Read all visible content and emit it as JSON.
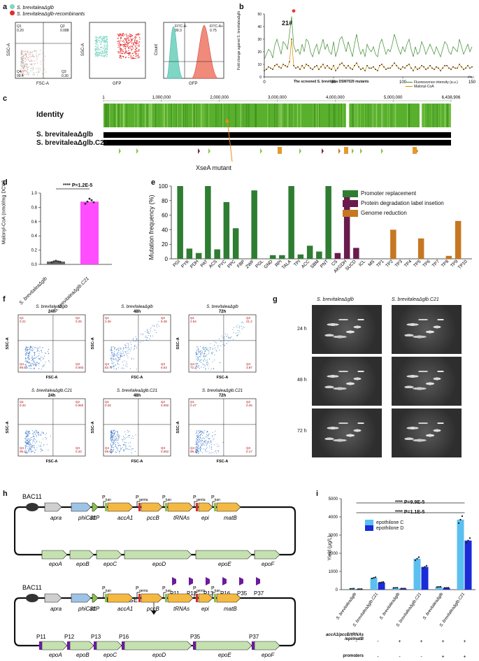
{
  "panels": {
    "a": "a",
    "b": "b",
    "c": "c",
    "d": "d",
    "e": "e",
    "f": "f",
    "g": "g",
    "h": "h",
    "i": "i"
  },
  "a": {
    "legend": [
      "S. brevitaleaΔglb",
      "S. brevitaleaΔglb-recombinants"
    ],
    "legend_colors": [
      "#7fd6c4",
      "#e52b2b"
    ],
    "plot1": {
      "xlabel": "FSC-A",
      "ylabel": "SSC-A",
      "q1": "Q1\n0.20",
      "q2": "Q2\n0.088",
      "q3": "Q3\n0.30",
      "q4": "Q4\n99.4"
    },
    "plot2": {
      "xlabel": "GFP",
      "ylabel": "SSC-A"
    },
    "plot3": {
      "xlabel": "GFP",
      "ylabel": "Count",
      "l1": "FITC-A-\n99.3",
      "l2": "FITC-A+\n0.75"
    }
  },
  "b": {
    "ylabel": "Fold change against S. brevitaleaΔglb",
    "xlabel": "The screened S. brevitalea DSM7029 mutants",
    "annotation": "21#",
    "ticks_x": [
      "0",
      "50",
      "100",
      "150"
    ],
    "xunit": "(No.)",
    "legend": [
      "Fluorescence intensity (a.u.)",
      "Malonyl-CoA"
    ]
  },
  "c": {
    "identity_label": "Identity",
    "ticks": [
      "1",
      "1,000,000",
      "2,000,000",
      "3,000,000",
      "4,000,000",
      "5,000,000",
      "6,438,906"
    ],
    "row1": "S. brevitaleaΔglb",
    "row2": "S. brevitaleaΔglb.C21",
    "mutant_label": "XseA mutant"
  },
  "d": {
    "ylabel": "Malonyl-CoA (nmol/mg DCW)",
    "sig": "**** P=1.2E-5",
    "categories": [
      "S. brevitaleaΔglb",
      "S. brevitaleaΔglb.C21"
    ],
    "yticks": [
      "0.0",
      "0.2",
      "0.4",
      "0.6",
      "0.8",
      "1.0"
    ]
  },
  "e": {
    "ylabel": "Mutation frequency (%)",
    "yticks": [
      "0",
      "20",
      "40",
      "60",
      "80",
      "100"
    ],
    "legend": [
      "Promoter replacement",
      "Protein degradation label insetion",
      "Genome reduction"
    ],
    "legend_colors": [
      "#2e7d32",
      "#6a1b4d",
      "#c77721"
    ]
  },
  "f": {
    "titles": [
      "S. brevitaleaΔglb\n24h",
      "S. brevitaleaΔglb\n48h",
      "S. brevitaleaΔglb\n72h",
      "S. brevitaleaΔglb.C21\n24h",
      "S. brevitaleaΔglb.C21\n48h",
      "S. brevitaleaΔglb.C21\n72h"
    ],
    "xlabel": "FSC-A",
    "ylabel": "SSC-A",
    "quads": [
      [
        "Q1\n0.21",
        "Q2\n0.25",
        "Q3\n0.093",
        "Q4\n99.5"
      ],
      [
        "Q1\n2.26",
        "Q2\n8.48",
        "Q3\n6.63",
        "Q4\n82.7"
      ],
      [
        "Q1\n2.64",
        "Q2\n21.2",
        "Q3\n3.87",
        "Q4\n72.3"
      ],
      [
        "Q1\n0.34",
        "Q2\n0.060",
        "Q3\n0.33",
        "Q4\n99.4"
      ],
      [
        "Q1\n0.26",
        "Q2\n0.092",
        "Q3\n0.052",
        "Q4\n99.6"
      ],
      [
        "Q1\n0.47",
        "Q2\n0.26",
        "Q3\n0.17",
        "Q4\n99.1"
      ]
    ]
  },
  "g": {
    "col_titles": [
      "S. brevitaleaΔglb",
      "S. brevitaleaΔglb.C21"
    ],
    "rows": [
      "24 h",
      "48 h",
      "72 h"
    ]
  },
  "h": {
    "bac": "BAC11",
    "top_genes": [
      "apra",
      "phiC31",
      "attP",
      "accA1",
      "pccB",
      "tRNAs",
      "epi",
      "matB"
    ],
    "promoters": [
      "P\nkan",
      "P\ngenta",
      "P\nkan",
      "P\ngenta",
      "P\nkan"
    ],
    "bottom_genes": [
      "epoA",
      "epoB",
      "epoC",
      "epoD",
      "epoE",
      "epoF"
    ],
    "realmge": "ReaL-MGE",
    "parts": [
      "P11",
      "P12",
      "P13",
      "P16",
      "P35",
      "P37"
    ]
  },
  "i": {
    "ylabel": "Yield (μg/L)",
    "yticks": [
      "0",
      "1000",
      "2000",
      "3000",
      "4000",
      "5000"
    ],
    "sig1": "**** P=9.9E-5",
    "sig2": "**** P=1.1E-5",
    "legend": [
      "epothilone C",
      "epothilone D"
    ],
    "legend_colors": [
      "#5bc0f0",
      "#1a2bd8"
    ],
    "categories": [
      "S. brevitaleaΔglb",
      "S. brevitaleaΔglb.C21",
      "S. brevitaleaΔglb",
      "S. brevitaleaΔglb.C21",
      "S. brevitaleaΔglb",
      "S. brevitaleaΔglb.C21"
    ],
    "row1_label": "accA1/pccB/tRNAs\n/epi/matB",
    "row1_signs": [
      "-",
      "-",
      "+",
      "+",
      "+",
      "+"
    ],
    "row2_label": "promoters",
    "row2_signs": [
      "-",
      "-",
      "-",
      "-",
      "+",
      "+"
    ]
  },
  "chart_data": [
    {
      "type": "line",
      "panel": "b",
      "x_range": [
        0,
        150
      ],
      "ylim": [
        0,
        50
      ],
      "series": [
        {
          "name": "Fluorescence intensity (a.u.)",
          "values": [
            14,
            18,
            22,
            20,
            15,
            25,
            30,
            24,
            18,
            28,
            26,
            22,
            34,
            48,
            25,
            20,
            22,
            18,
            26,
            20,
            30,
            28,
            20,
            16,
            22,
            26,
            18,
            24,
            30,
            22,
            26,
            20,
            18,
            28,
            16,
            22,
            30,
            32,
            26,
            20,
            28,
            22,
            16,
            26,
            34,
            24,
            18,
            22,
            16,
            26,
            22,
            20,
            24,
            18,
            16,
            26,
            30,
            24,
            18,
            22,
            20,
            26,
            34,
            28,
            22,
            18,
            24,
            20,
            26,
            30,
            22,
            16,
            24,
            18,
            20,
            28,
            24,
            18,
            22,
            26,
            22,
            18,
            24,
            20,
            16,
            22,
            28,
            26,
            20,
            18,
            24,
            22,
            20,
            30,
            24,
            18,
            22,
            26,
            20,
            24
          ]
        },
        {
          "name": "Malonyl-CoA",
          "values": [
            5,
            6,
            8,
            7,
            6,
            9,
            10,
            8,
            7,
            10,
            9,
            8,
            12,
            30,
            9,
            7,
            8,
            6,
            9,
            7,
            10,
            9,
            7,
            6,
            8,
            9,
            6,
            8,
            10,
            7,
            9,
            7,
            6,
            9,
            5,
            7,
            10,
            11,
            9,
            7,
            9,
            7,
            6,
            9,
            11,
            8,
            6,
            7,
            5,
            9,
            7,
            7,
            8,
            6,
            5,
            9,
            10,
            8,
            6,
            7,
            7,
            9,
            11,
            9,
            7,
            6,
            8,
            7,
            9,
            10,
            7,
            5,
            8,
            6,
            7,
            9,
            8,
            6,
            7,
            9,
            7,
            6,
            8,
            7,
            5,
            7,
            9,
            9,
            7,
            6,
            8,
            7,
            7,
            10,
            8,
            6,
            7,
            9,
            7,
            8
          ]
        }
      ]
    },
    {
      "type": "bar",
      "panel": "d",
      "categories": [
        "S. brevitaleaΔglb",
        "S. brevitaleaΔglb.C21"
      ],
      "values": [
        0.04,
        0.88
      ],
      "ylim": [
        0,
        1.0
      ],
      "colors": [
        "#666666",
        "#ff4dff"
      ],
      "points": [
        [
          0.03,
          0.04,
          0.05,
          0.04,
          0.035
        ],
        [
          0.85,
          0.88,
          0.92,
          0.9,
          0.87
        ]
      ]
    },
    {
      "type": "bar",
      "panel": "e",
      "ylim": [
        0,
        100
      ],
      "categories": [
        "PGI",
        "PYK",
        "PDH",
        "PAT",
        "ACS",
        "PYC",
        "PPC",
        "FBP",
        "ZWF",
        "PGL",
        "GND",
        "RPI",
        "TALA",
        "TPI",
        "ACC",
        "SBM",
        "PNT",
        "CS",
        "AKGDH",
        "SUCD",
        "ICL",
        "MS",
        "TP1",
        "TP2",
        "TP3",
        "TP4",
        "TP5",
        "TP6",
        "TP7",
        "TP8",
        "TP9",
        "TP10"
      ],
      "values": [
        100,
        14,
        8,
        100,
        13,
        78,
        42,
        0,
        94,
        0,
        5,
        5,
        100,
        6,
        18,
        10,
        100,
        8,
        85,
        15,
        0,
        0,
        0,
        40,
        0,
        0,
        28,
        0,
        0,
        4,
        52,
        0
      ],
      "groups": [
        "p",
        "p",
        "p",
        "p",
        "p",
        "p",
        "p",
        "p",
        "p",
        "p",
        "p",
        "p",
        "p",
        "p",
        "p",
        "p",
        "p",
        "d",
        "d",
        "d",
        "d",
        "d",
        "g",
        "g",
        "g",
        "g",
        "g",
        "g",
        "g",
        "g",
        "g",
        "g"
      ]
    },
    {
      "type": "bar",
      "panel": "i",
      "categories": [
        "S. brevitaleaΔglb",
        "S. brevitaleaΔglb.C21",
        "S. brevitaleaΔglb",
        "S. brevitaleaΔglb.C21",
        "S. brevitaleaΔglb",
        "S. brevitaleaΔglb.C21"
      ],
      "ylim": [
        0,
        5000
      ],
      "series": [
        {
          "name": "epothilone C",
          "values": [
            50,
            650,
            100,
            1700,
            150,
            3850
          ]
        },
        {
          "name": "epothilone D",
          "values": [
            30,
            400,
            60,
            1250,
            100,
            2700
          ]
        }
      ]
    }
  ]
}
